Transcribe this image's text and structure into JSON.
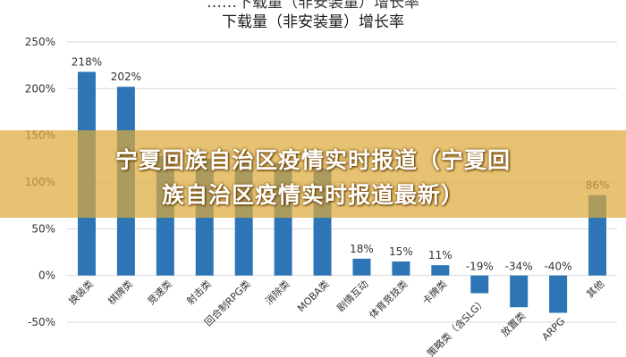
{
  "chart_data": {
    "type": "bar",
    "title_partial_top": "……下载量（非安装量）增长率",
    "title": "下载量（非安装量）增长率",
    "categories": [
      "换装类",
      "棋牌类",
      "竞速类",
      "射击类",
      "回合制RPG类",
      "消除类",
      "MOBA类",
      "剧情互动",
      "体育竞技类",
      "卡牌类",
      "策略类（含SLG）",
      "放置类",
      "ARPG",
      "其他"
    ],
    "values": [
      218,
      202,
      128,
      125,
      122,
      121,
      115,
      18,
      15,
      11,
      -19,
      -34,
      -40,
      86
    ],
    "data_labels": [
      "218%",
      "202%",
      "",
      "",
      "",
      "",
      "",
      "18%",
      "15%",
      "11%",
      "-19%",
      "-34%",
      "-40%",
      "86%"
    ],
    "y_ticks": [
      "250%",
      "200%",
      "150%",
      "100%",
      "50%",
      "0%",
      "-50%"
    ],
    "ylim": [
      -50,
      250
    ],
    "grid": true,
    "colors": {
      "bar": "#2e75b6",
      "grid": "#d9d9d9",
      "text": "#333333",
      "banner": "#dcaa3c"
    }
  },
  "overlay": {
    "banner_line1": "宁夏回族自治区疫情实时报道（宁夏回",
    "banner_line2": "族自治区疫情实时报道最新）"
  }
}
